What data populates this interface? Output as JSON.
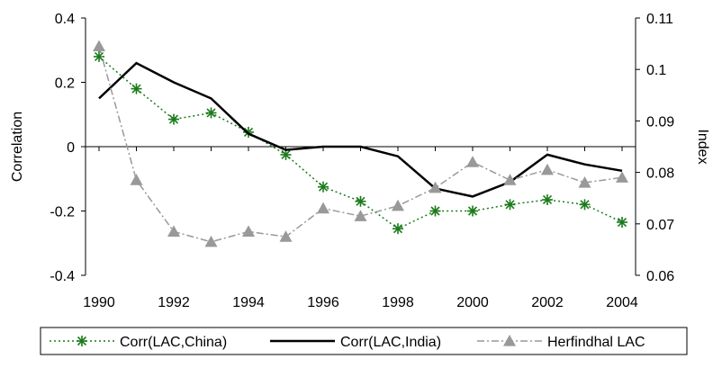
{
  "chart_data": {
    "type": "line",
    "x": [
      1990,
      1991,
      1992,
      1993,
      1994,
      1995,
      1996,
      1997,
      1998,
      1999,
      2000,
      2001,
      2002,
      2003,
      2004
    ],
    "xticks": [
      1990,
      1992,
      1994,
      1996,
      1998,
      2000,
      2002,
      2004
    ],
    "xtick_labels": [
      "1990",
      "1992",
      "1994",
      "1996",
      "1998",
      "2000",
      "2002",
      "2004"
    ],
    "ylabel_left": "Correlation",
    "ylabel_right": "Index",
    "ylim_left": [
      -0.4,
      0.4
    ],
    "ylim_right": [
      0.06,
      0.11
    ],
    "yticks_left": [
      -0.4,
      -0.2,
      0,
      0.2,
      0.4
    ],
    "ytick_labels_left": [
      "-0.4",
      "-0.2",
      "0",
      "0.2",
      "0.4"
    ],
    "yticks_right": [
      0.06,
      0.07,
      0.08,
      0.09,
      0.1,
      0.11
    ],
    "ytick_labels_right": [
      "0.06",
      "0.07",
      "0.08",
      "0.09",
      "0.1",
      "0.11"
    ],
    "grid": false,
    "legend_position": "bottom",
    "series": [
      {
        "name": "Corr(LAC,China)",
        "axis": "left",
        "color": "#1a7a1a",
        "line": "dotted",
        "marker": "asterisk",
        "values": [
          0.28,
          0.18,
          0.085,
          0.105,
          0.045,
          -0.025,
          -0.125,
          -0.17,
          -0.255,
          -0.2,
          -0.2,
          -0.18,
          -0.165,
          -0.18,
          -0.235
        ]
      },
      {
        "name": "Corr(LAC,India)",
        "axis": "left",
        "color": "#000000",
        "line": "solid",
        "marker": "none",
        "values": [
          0.15,
          0.26,
          0.2,
          0.15,
          0.04,
          -0.01,
          0.0,
          0.0,
          -0.03,
          -0.13,
          -0.155,
          -0.11,
          -0.025,
          -0.055,
          -0.075
        ]
      },
      {
        "name": "Herfindhal LAC",
        "axis": "right",
        "color": "#999999",
        "line": "dash-dot",
        "marker": "triangle",
        "values": [
          0.1045,
          0.0785,
          0.0685,
          0.0665,
          0.0685,
          0.0675,
          0.073,
          0.0715,
          0.0735,
          0.077,
          0.082,
          0.0785,
          0.0805,
          0.078,
          0.079
        ]
      }
    ]
  }
}
